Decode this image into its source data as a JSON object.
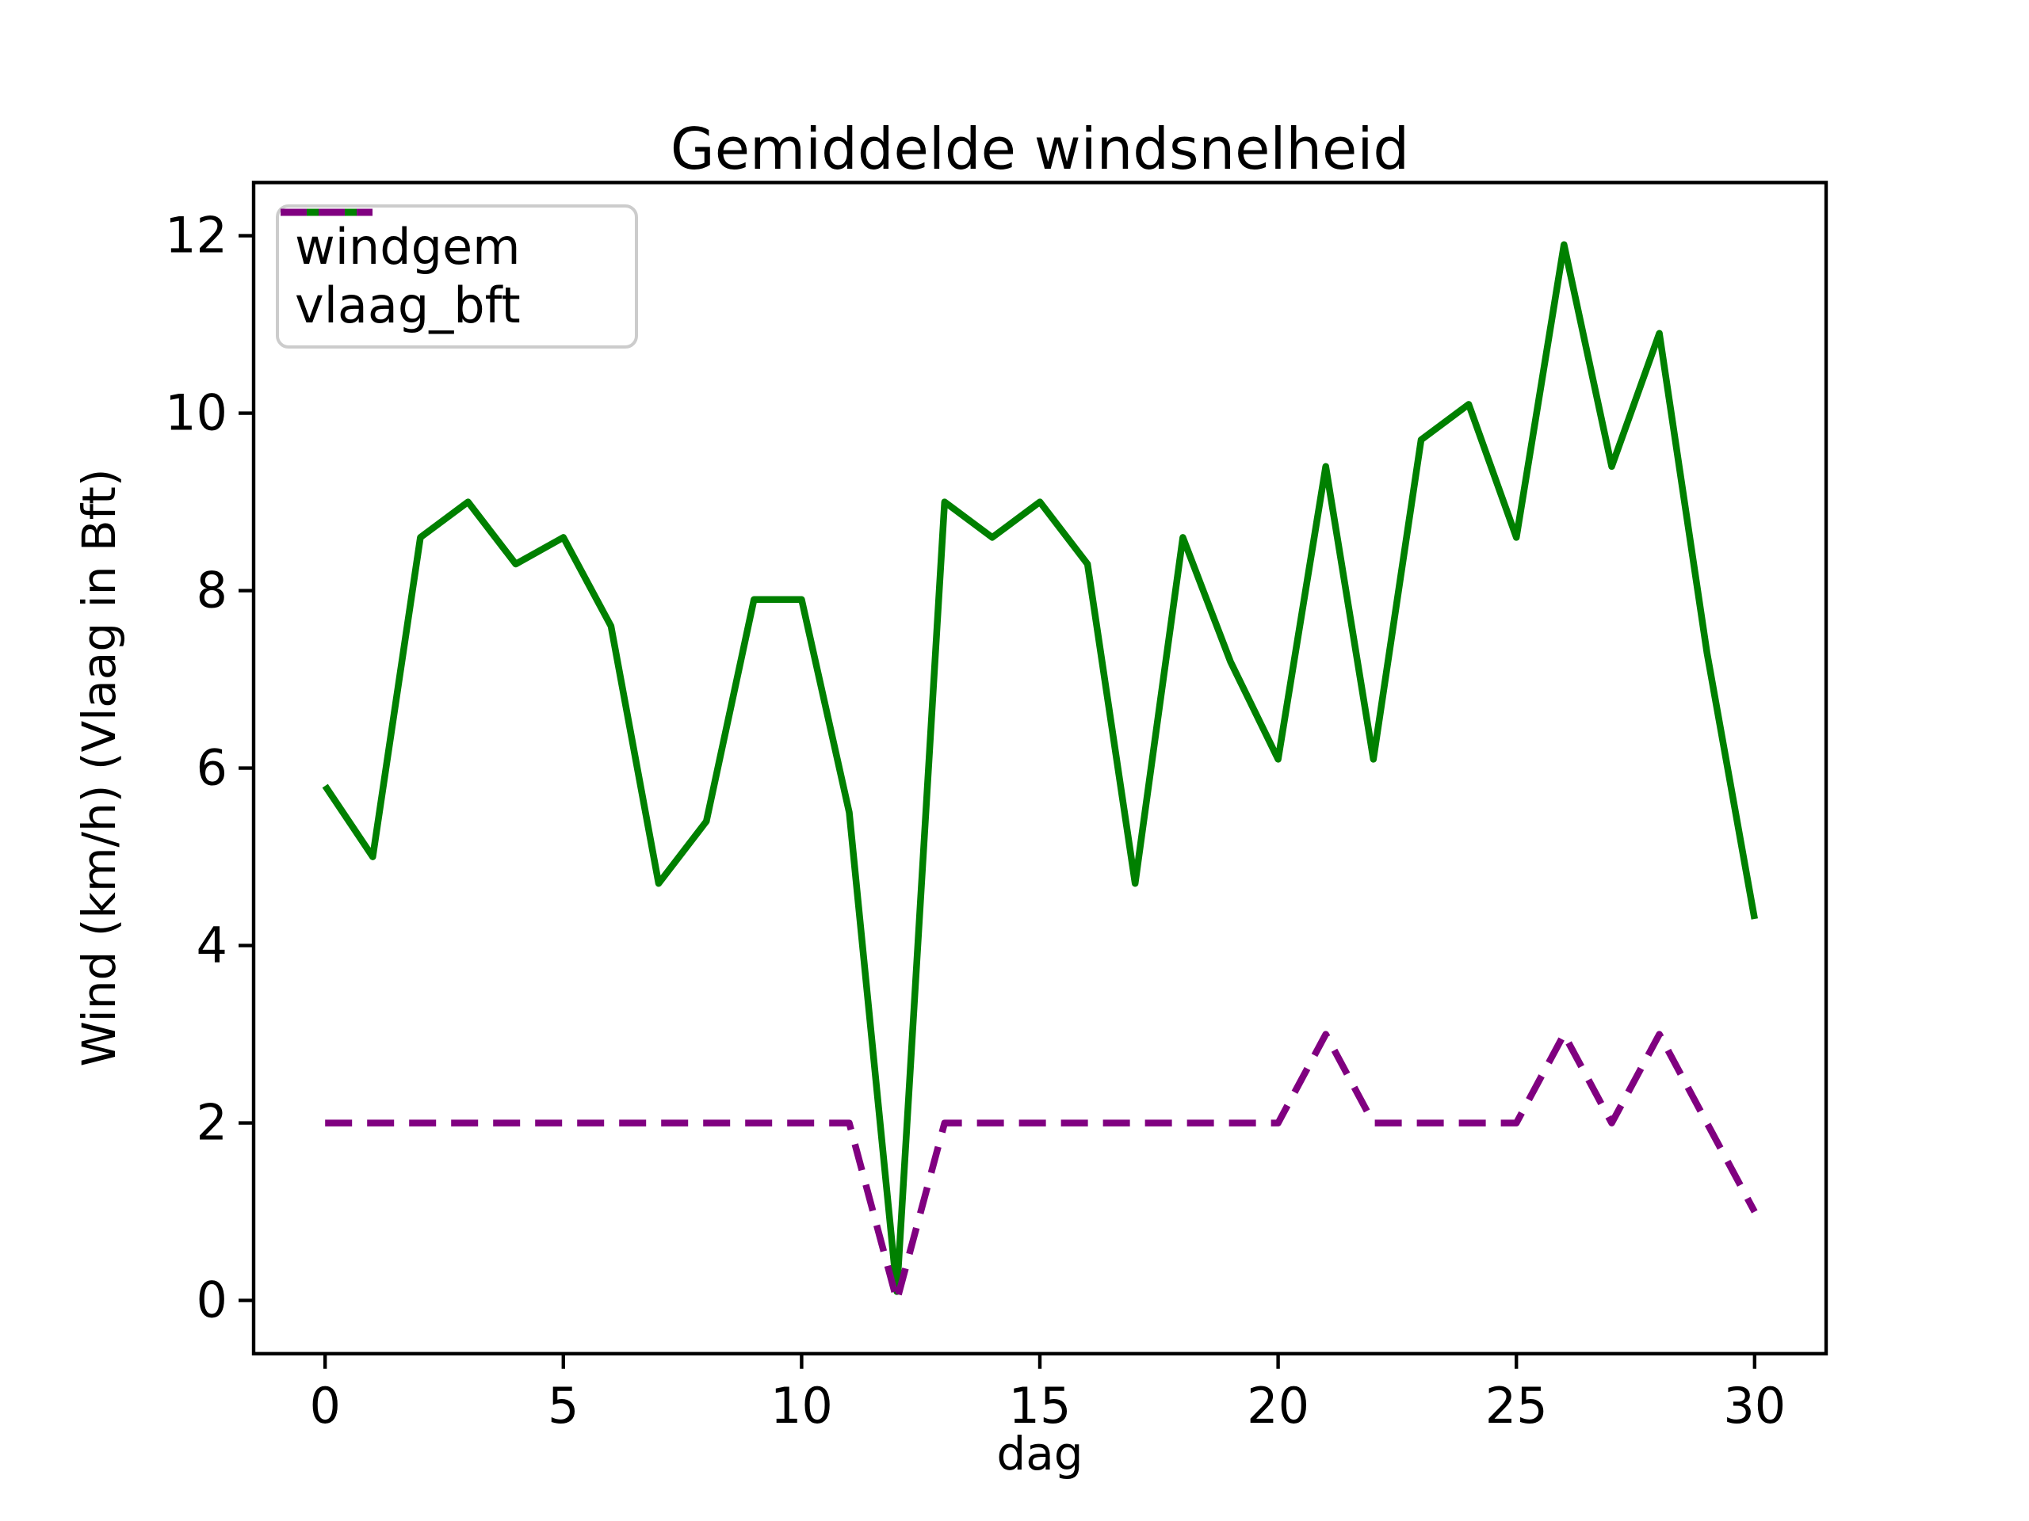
{
  "figure": {
    "title": "Gemiddelde windsnelheid",
    "background_color": "#ffffff"
  },
  "axes": {
    "xlabel": "dag",
    "ylabel": "Wind (km/h) (Vlaag in Bft)",
    "x_tick_labels": [
      "0",
      "5",
      "10",
      "15",
      "20",
      "25",
      "30"
    ],
    "y_tick_labels": [
      "0",
      "2",
      "4",
      "6",
      "8",
      "10",
      "12"
    ],
    "spine_color": "#000000",
    "tick_color": "#000000"
  },
  "legend": {
    "border_color": "#cccccc",
    "entries": [
      {
        "label": "windgem",
        "color": "#008000",
        "style": "solid"
      },
      {
        "label": "vlaag_bft",
        "color": "#800080",
        "style": "dashed"
      }
    ]
  },
  "chart_data": {
    "type": "line",
    "title": "Gemiddelde windsnelheid",
    "xlabel": "dag",
    "ylabel": "Wind (km/h) (Vlaag in Bft)",
    "x": [
      0,
      1,
      2,
      3,
      4,
      5,
      6,
      7,
      8,
      9,
      10,
      11,
      12,
      13,
      14,
      15,
      16,
      17,
      18,
      19,
      20,
      21,
      22,
      23,
      24,
      25,
      26,
      27,
      28,
      29,
      30
    ],
    "series": [
      {
        "name": "windgem",
        "color": "#008000",
        "linestyle": "solid",
        "values": [
          5.8,
          5.0,
          8.6,
          9.0,
          8.3,
          8.6,
          7.6,
          4.7,
          5.4,
          7.9,
          7.9,
          5.5,
          0.1,
          9.0,
          8.6,
          9.0,
          8.3,
          4.7,
          8.6,
          7.2,
          6.1,
          9.4,
          6.1,
          9.7,
          10.1,
          8.6,
          11.9,
          9.4,
          10.9,
          7.3,
          4.3
        ]
      },
      {
        "name": "vlaag_bft",
        "color": "#800080",
        "linestyle": "dashed",
        "values": [
          2,
          2,
          2,
          2,
          2,
          2,
          2,
          2,
          2,
          2,
          2,
          2,
          0,
          2,
          2,
          2,
          2,
          2,
          2,
          2,
          2,
          3,
          2,
          2,
          2,
          2,
          3,
          2,
          3,
          2,
          1
        ]
      }
    ],
    "x_ticks": [
      0,
      5,
      10,
      15,
      20,
      25,
      30
    ],
    "y_ticks": [
      0,
      2,
      4,
      6,
      8,
      10,
      12
    ],
    "xlim": [
      -1.5,
      31.5
    ],
    "ylim": [
      -0.6,
      12.6
    ],
    "grid": false,
    "legend_position": "upper left"
  }
}
